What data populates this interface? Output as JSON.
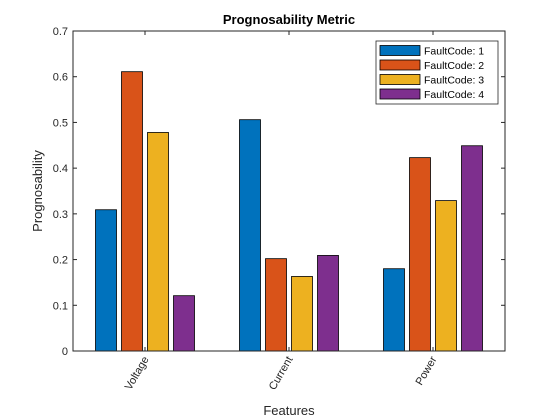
{
  "chart_data": {
    "type": "bar",
    "title": "Prognosability Metric",
    "xlabel": "Features",
    "ylabel": "Prognosability",
    "categories": [
      "Voltage",
      "Current",
      "Power"
    ],
    "series": [
      {
        "name": "FaultCode: 1",
        "color": "#0072BD",
        "values": [
          0.309,
          0.506,
          0.18
        ]
      },
      {
        "name": "FaultCode: 2",
        "color": "#D95319",
        "values": [
          0.611,
          0.202,
          0.423
        ]
      },
      {
        "name": "FaultCode: 3",
        "color": "#EDB120",
        "values": [
          0.478,
          0.163,
          0.329
        ]
      },
      {
        "name": "FaultCode: 4",
        "color": "#7E2F8E",
        "values": [
          0.121,
          0.209,
          0.449
        ]
      }
    ],
    "ylim": [
      0,
      0.7
    ],
    "yticks": [
      "0",
      "0.1",
      "0.2",
      "0.3",
      "0.4",
      "0.5",
      "0.6",
      "0.7"
    ],
    "legend_position": "top-right",
    "grid": false
  }
}
